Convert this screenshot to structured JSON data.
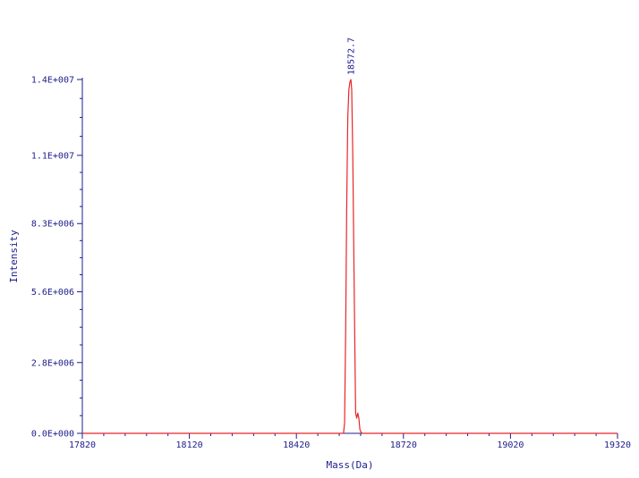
{
  "chart_data": {
    "type": "line",
    "xlabel": "Mass(Da)",
    "ylabel": "Intensity",
    "xlim": [
      17820,
      19320
    ],
    "ylim": [
      0,
      14000000
    ],
    "x_ticks": [
      17820,
      18120,
      18420,
      18720,
      19020,
      19320
    ],
    "x_tick_labels": [
      "17820",
      "18120",
      "18420",
      "18720",
      "19020",
      "19320"
    ],
    "y_ticks": [
      0,
      2800000,
      5600000,
      8300000,
      11000000,
      14000000
    ],
    "y_tick_labels": [
      "0.0E+000",
      "2.8E+006",
      "5.6E+006",
      "8.3E+006",
      "1.1E+007",
      "1.4E+007"
    ],
    "grid": false,
    "line_color": "#e8262a",
    "axis_color": "#1c1c8c",
    "series": [
      {
        "x": [
          17820,
          18500,
          18552,
          18555,
          18558,
          18561,
          18564,
          18567,
          18570,
          18572.7,
          18575,
          18578,
          18581,
          18584,
          18586,
          18589,
          18592,
          18595,
          18598,
          18601,
          18604,
          18610,
          19320
        ],
        "y": [
          0,
          0,
          0,
          400000,
          4000000,
          9000000,
          12500000,
          13600000,
          13900000,
          14000000,
          13600000,
          11000000,
          7000000,
          3200000,
          800000,
          600000,
          800000,
          600000,
          150000,
          50000,
          0,
          0,
          0
        ]
      }
    ],
    "annotations": [
      {
        "x": 18572.7,
        "y": 14000000,
        "text": "18572.7"
      }
    ]
  }
}
